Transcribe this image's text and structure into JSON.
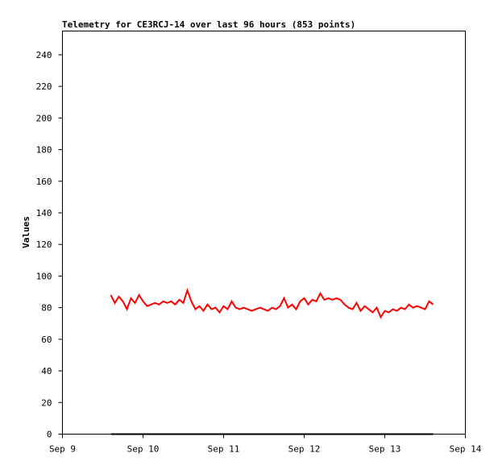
{
  "chart_data": {
    "type": "line",
    "title": "Telemetry for CE3RCJ-14 over last 96 hours (853 points)",
    "ylabel": "Values",
    "xlim": [
      9,
      14
    ],
    "xticks": [
      {
        "value": 9,
        "label": "Sep 9"
      },
      {
        "value": 10,
        "label": "Sep 10"
      },
      {
        "value": 11,
        "label": "Sep 11"
      },
      {
        "value": 12,
        "label": "Sep 12"
      },
      {
        "value": 13,
        "label": "Sep 13"
      },
      {
        "value": 14,
        "label": "Sep 14"
      }
    ],
    "ylim": [
      0,
      255
    ],
    "yticks": [
      0,
      20,
      40,
      60,
      80,
      100,
      120,
      140,
      160,
      180,
      200,
      220,
      240
    ],
    "series": [
      {
        "color": "#ff0000",
        "x": [
          9.6,
          9.65,
          9.7,
          9.75,
          9.8,
          9.85,
          9.9,
          9.95,
          10.0,
          10.05,
          10.1,
          10.15,
          10.2,
          10.25,
          10.3,
          10.35,
          10.4,
          10.45,
          10.5,
          10.55,
          10.6,
          10.65,
          10.7,
          10.75,
          10.8,
          10.85,
          10.9,
          10.95,
          11.0,
          11.05,
          11.1,
          11.15,
          11.2,
          11.25,
          11.3,
          11.35,
          11.4,
          11.45,
          11.5,
          11.55,
          11.6,
          11.65,
          11.7,
          11.75,
          11.8,
          11.85,
          11.9,
          11.95,
          12.0,
          12.05,
          12.1,
          12.15,
          12.2,
          12.25,
          12.3,
          12.35,
          12.4,
          12.45,
          12.5,
          12.55,
          12.6,
          12.65,
          12.7,
          12.75,
          12.8,
          12.85,
          12.9,
          12.95,
          13.0,
          13.05,
          13.1,
          13.15,
          13.2,
          13.25,
          13.3,
          13.35,
          13.4,
          13.45,
          13.5,
          13.55,
          13.6
        ],
        "values": [
          88,
          83,
          87,
          84,
          79,
          86,
          83,
          88,
          84,
          81,
          82,
          83,
          82,
          84,
          83,
          84,
          82,
          85,
          83,
          91,
          84,
          79,
          81,
          78,
          82,
          79,
          80,
          77,
          81,
          79,
          84,
          80,
          79,
          80,
          79,
          78,
          79,
          80,
          79,
          78,
          80,
          79,
          81,
          86,
          80,
          82,
          79,
          84,
          86,
          82,
          85,
          84,
          89,
          85,
          86,
          85,
          86,
          85,
          82,
          80,
          79,
          83,
          78,
          81,
          79,
          77,
          80,
          74,
          78,
          77,
          79,
          78,
          80,
          79,
          82,
          80,
          81,
          80,
          79,
          84,
          82
        ]
      },
      {
        "color": "#000000",
        "x": [
          9.6,
          13.6
        ],
        "values": [
          0,
          0
        ]
      }
    ]
  }
}
